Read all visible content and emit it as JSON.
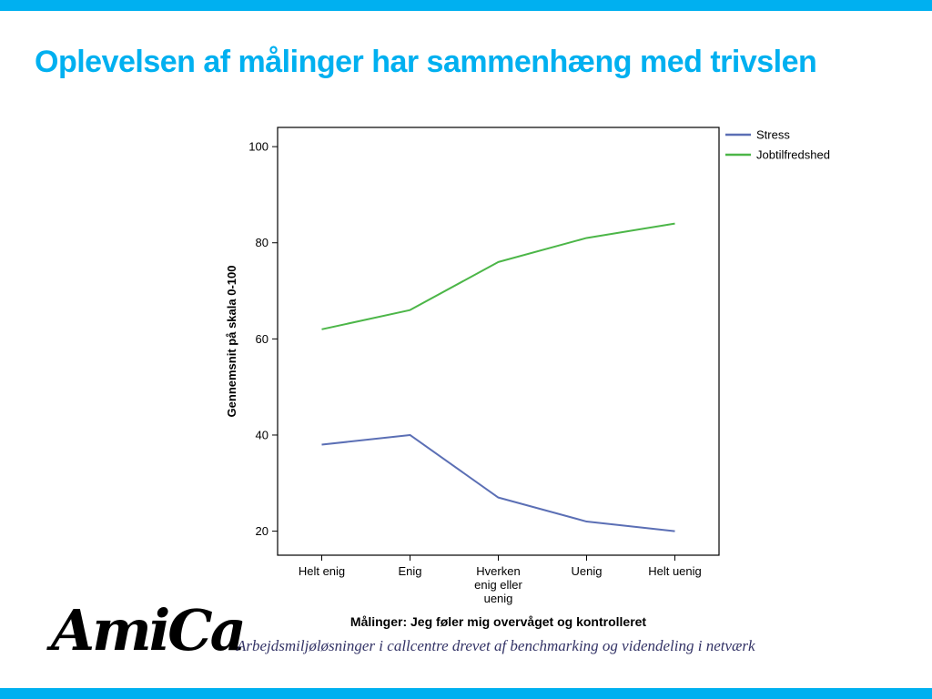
{
  "slide": {
    "title": "Oplevelsen af målinger har sammenhæng med trivslen",
    "accent_color": "#00b0f0",
    "footer": "Arbejdsmiljøløsninger i callcentre drevet af benchmarking og videndeling i netværk",
    "footer_color": "#333366",
    "logo_text": "AmiCa"
  },
  "chart_data": {
    "type": "line",
    "xlabel": "Målinger: Jeg føler mig overvåget og kontrolleret",
    "ylabel": "Gennemsnit på skala 0-100",
    "categories": [
      "Helt enig",
      "Enig",
      "Hverken enig eller uenig",
      "Uenig",
      "Helt uenig"
    ],
    "category_tick_lines": [
      [
        "Helt enig"
      ],
      [
        "Enig"
      ],
      [
        "Hverken",
        "enig eller",
        "uenig"
      ],
      [
        "Uenig"
      ],
      [
        "Helt uenig"
      ]
    ],
    "yticks": [
      20,
      40,
      60,
      80,
      100
    ],
    "ylim": [
      15,
      104
    ],
    "grid": false,
    "legend_position": "top-right",
    "series": [
      {
        "name": "Stress",
        "color": "#5b6fb5",
        "values": [
          38,
          40,
          27,
          22,
          20
        ]
      },
      {
        "name": "Jobtilfredshed",
        "color": "#4cb648",
        "values": [
          62,
          66,
          76,
          81,
          84
        ]
      }
    ]
  }
}
